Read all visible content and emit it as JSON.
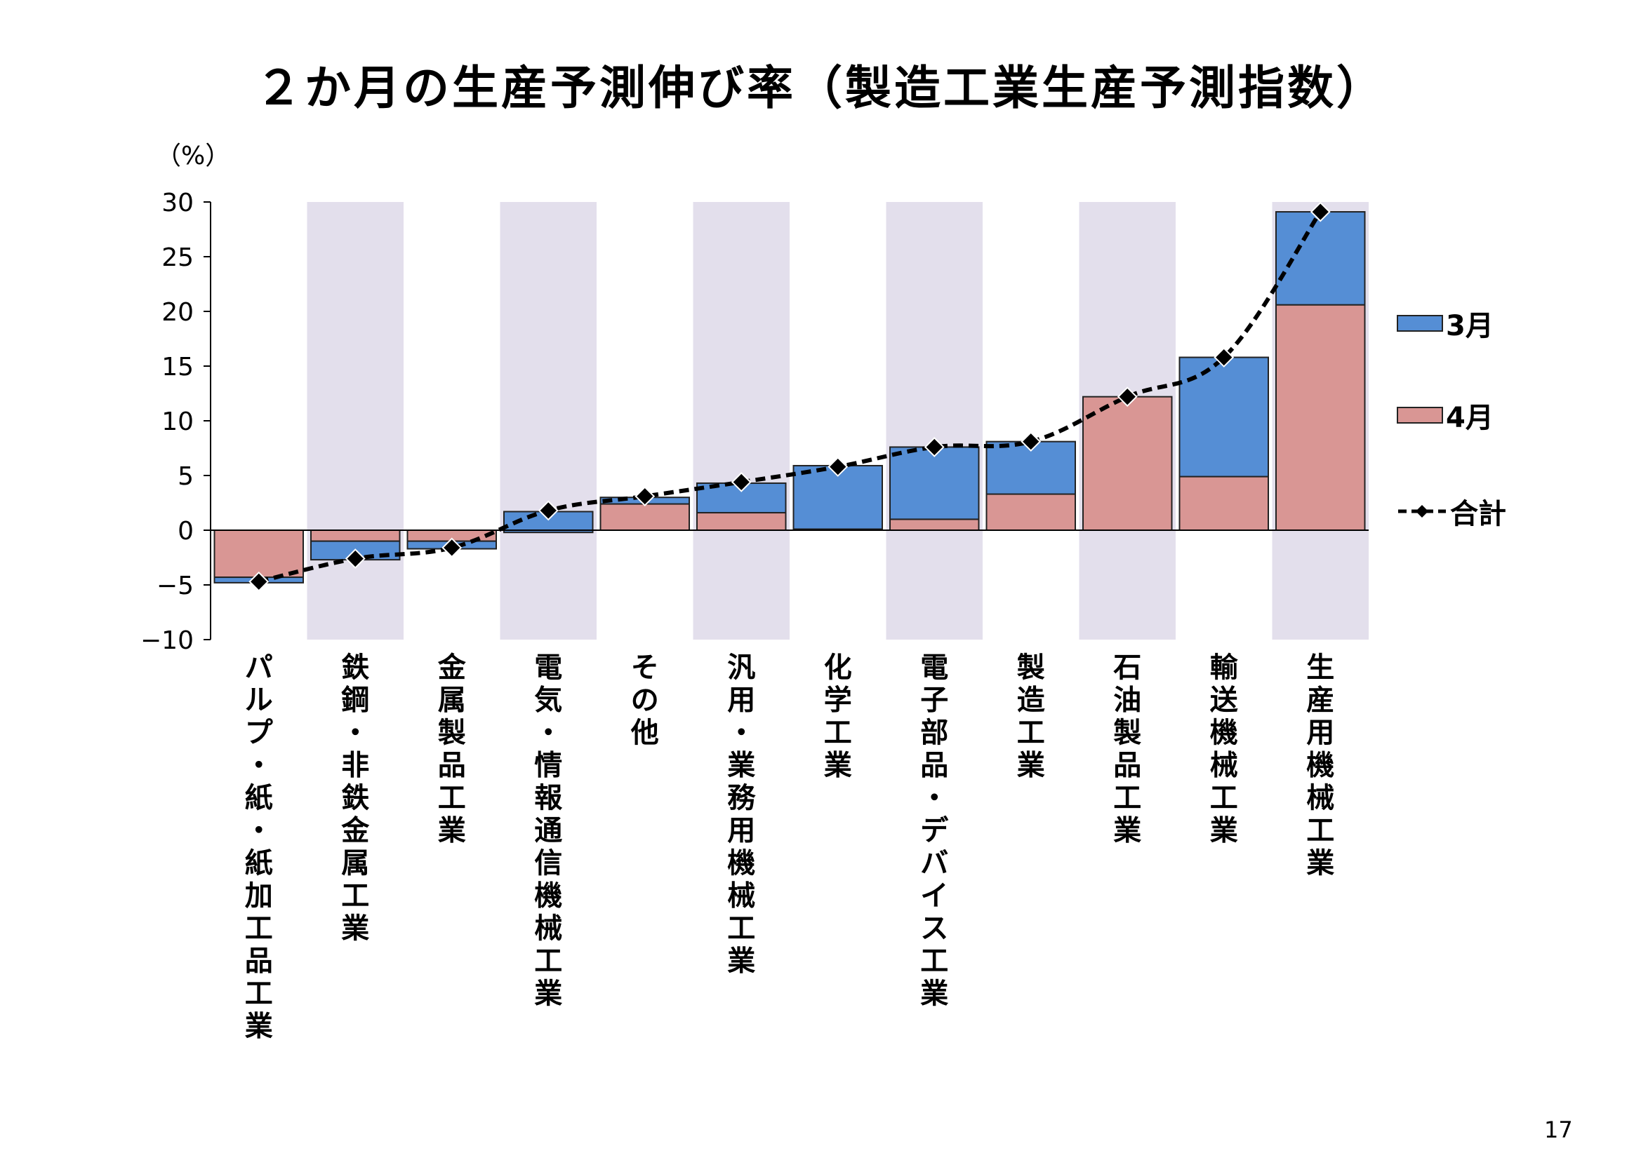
{
  "page": {
    "title": "２か月の生産予測伸び率（製造工業生産予測指数）",
    "unit_label": "（%）",
    "page_number": "17"
  },
  "colors": {
    "march": "#558ed5",
    "april": "#d99694",
    "band": "#e3dfec",
    "line": "#000000"
  },
  "chart_data": {
    "type": "bar",
    "stacked": true,
    "categories": [
      "パルプ・紙・紙加工品工業",
      "鉄鋼・非鉄金属工業",
      "金属製品工業",
      "電気・情報通信機械工業",
      "その他",
      "汎用・業務用機械工業",
      "化学工業",
      "電子部品・デバイス工業",
      "製造工業",
      "石油製品工業",
      "輸送機械工業",
      "生産用機械工業"
    ],
    "series": [
      {
        "name": "3月",
        "values": [
          -0.5,
          -1.7,
          -0.7,
          1.9,
          0.6,
          2.7,
          5.8,
          6.6,
          4.8,
          0.0,
          10.9,
          8.5
        ]
      },
      {
        "name": "4月",
        "values": [
          -4.3,
          -1.0,
          -1.0,
          -0.2,
          2.4,
          1.6,
          0.1,
          1.0,
          3.3,
          12.2,
          4.9,
          20.6
        ]
      }
    ],
    "line_series": {
      "name": "合計",
      "values": [
        -4.7,
        -2.6,
        -1.6,
        1.8,
        3.1,
        4.4,
        5.8,
        7.6,
        8.1,
        12.2,
        15.8,
        29.1
      ]
    },
    "yticks": [
      30,
      25,
      20,
      15,
      10,
      5,
      0,
      -5,
      -10
    ],
    "ylim": [
      -10,
      30
    ],
    "legend": [
      "3月",
      "4月",
      "合計"
    ],
    "legend_position": "right"
  }
}
